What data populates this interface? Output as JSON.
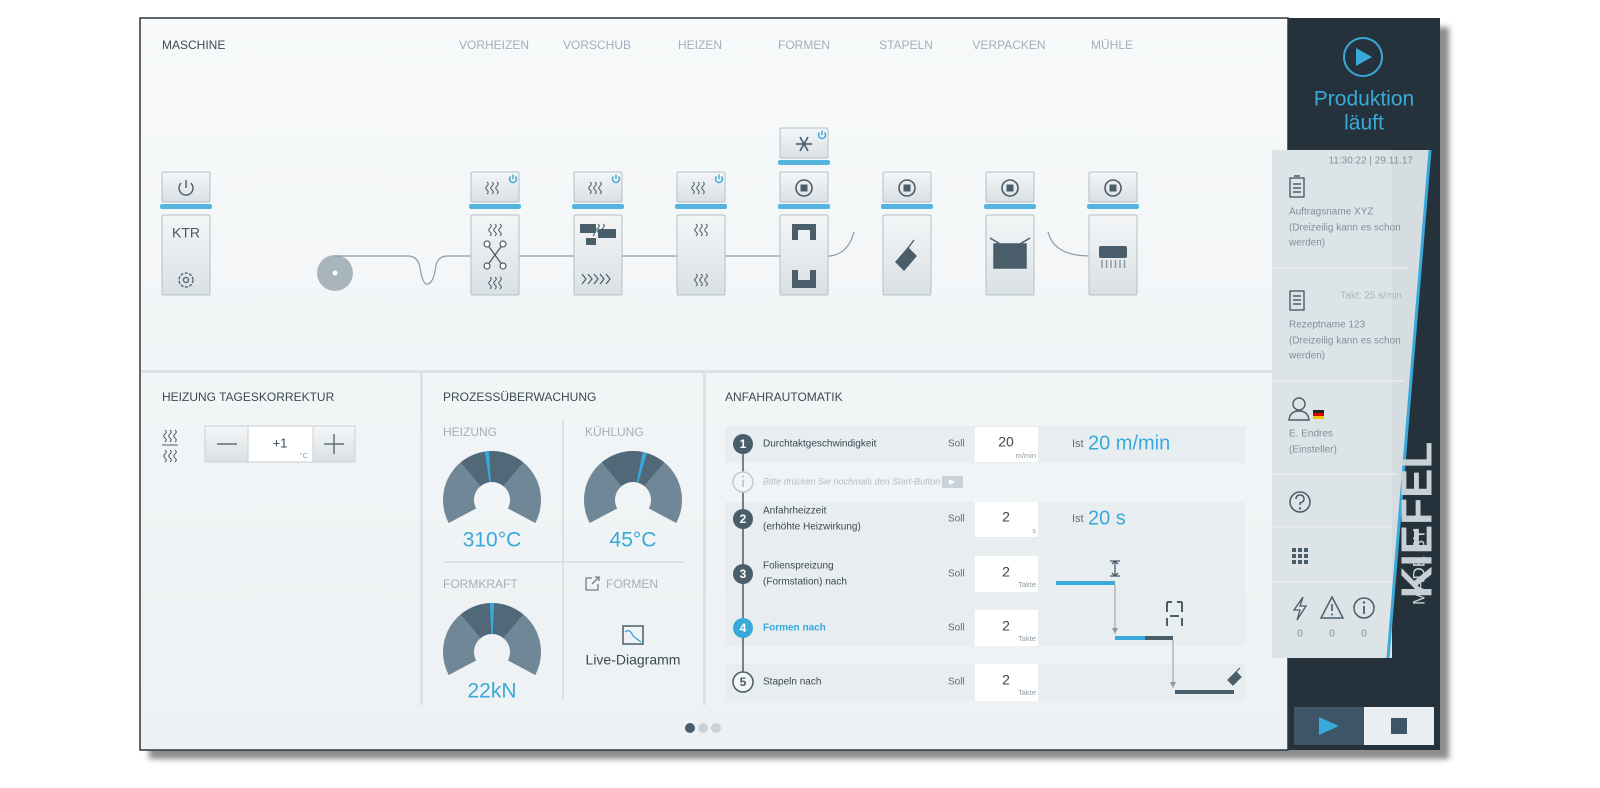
{
  "header": {
    "title": "MASCHINE",
    "tabs": [
      "VORHEIZEN",
      "VORSCHUB",
      "HEIZEN",
      "FORMEN",
      "STAPELN",
      "VERPACKEN",
      "MÜHLE"
    ]
  },
  "machine": {
    "ktr": "KTR"
  },
  "heating_correction": {
    "title": "HEIZUNG TAGESKORREKTUR",
    "value": "+1",
    "unit": "°C"
  },
  "process_monitoring": {
    "title": "PROZESSÜBERWACHUNG",
    "gauges": [
      {
        "label": "HEIZUNG",
        "value": "310°C"
      },
      {
        "label": "KÜHLUNG",
        "value": "45°C"
      },
      {
        "label": "FORMKRAFT",
        "value": "22kN"
      }
    ],
    "link": "FORMEN",
    "diagram": "Live-Diagramm"
  },
  "startup": {
    "title": "ANFAHRAUTOMATIK",
    "hint": "Bitte drücken Sie nochmals den Start-Button",
    "steps": [
      {
        "number": "1",
        "label": [
          "Durchtaktgeschwindigkeit"
        ],
        "soll_label": "Soll",
        "soll": "20",
        "unit": "m/min",
        "ist_label": "Ist",
        "ist": "20 m/min"
      },
      {
        "number": "2",
        "label": [
          "Anfahrheizzeit",
          "(erhöhte Heizwirkung)"
        ],
        "soll_label": "Soll",
        "soll": "2",
        "unit": "s",
        "ist_label": "Ist",
        "ist": "20 s"
      },
      {
        "number": "3",
        "label": [
          "Folienspreizung",
          "(Formstation) nach"
        ],
        "soll_label": "Soll",
        "soll": "2",
        "unit": "Takte"
      },
      {
        "number": "4",
        "label": [
          "Formen nach"
        ],
        "soll_label": "Soll",
        "soll": "2",
        "unit": "Takte"
      },
      {
        "number": "5",
        "label": [
          "Stapeln nach"
        ],
        "soll_label": "Soll",
        "soll": "2",
        "unit": "Takte"
      }
    ]
  },
  "sidebar": {
    "status": [
      "Produktion",
      "läuft"
    ],
    "datetime": "11:30:22 | 29.11.17",
    "order": [
      "Auftragsname XYZ",
      "(Dreizeilig kann es schon",
      "werden)"
    ],
    "takt": "Takt: 25 s/min",
    "recipe": [
      "Rezeptname 123",
      "(Dreizeilig kann es schon",
      "werden)"
    ],
    "user": [
      "E. Endres",
      "(Einsteller)"
    ],
    "counters": [
      "0",
      "0",
      "0"
    ],
    "brand": {
      "made_by": "MADE BY",
      "name": "KIEFEL"
    }
  }
}
